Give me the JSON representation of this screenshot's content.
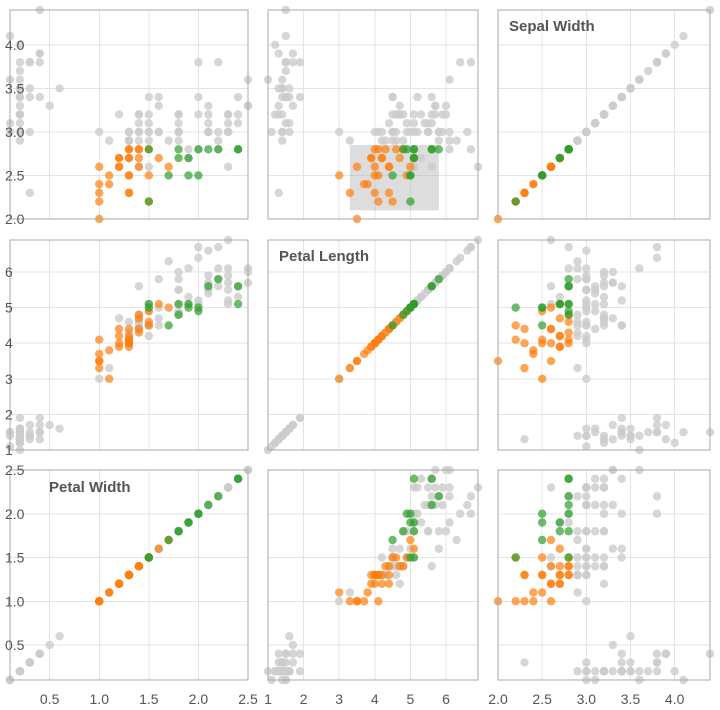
{
  "chart_data": {
    "type": "scatter",
    "subtype": "scatterplot-matrix",
    "dimensions": [
      {
        "name": "Sepal Width",
        "ylim": [
          2.0,
          4.4
        ],
        "yticks": [
          2.0,
          2.5,
          3.0,
          3.5,
          4.0
        ],
        "xlim": [
          2.0,
          4.4
        ],
        "xticks": [
          2.0,
          2.5,
          3.0,
          3.5,
          4.0
        ]
      },
      {
        "name": "Petal Length",
        "ylim": [
          1.0,
          6.9
        ],
        "yticks": [
          1,
          2,
          3,
          4,
          5,
          6
        ],
        "xlim": [
          1.0,
          6.9
        ],
        "xticks": [
          1,
          2,
          3,
          4,
          5,
          6
        ]
      },
      {
        "name": "Petal Width",
        "ylim": [
          0.1,
          2.5
        ],
        "yticks": [
          0.5,
          1.0,
          1.5,
          2.0,
          2.5
        ],
        "xlim": [
          0.1,
          2.5
        ],
        "xticks": [
          0.5,
          1.0,
          1.5,
          2.0,
          2.5
        ]
      }
    ],
    "column_order": [
      2,
      1,
      0
    ],
    "row_order": [
      0,
      1,
      2
    ],
    "grid": true,
    "colors": {
      "unselected": "#cccccc",
      "versicolor": "#ff7f0e",
      "virginica": "#2ca02c",
      "frame": "#a8a8a8",
      "brush": "#b4b4b4"
    },
    "brush": {
      "row": 0,
      "col": 1,
      "x_range": [
        3.3,
        5.8
      ],
      "y_range": [
        2.1,
        2.85
      ]
    },
    "selected_points": [
      {
        "group": "versicolor",
        "pw": 1.0,
        "pl": 3.5,
        "sw": 2.0
      },
      {
        "group": "versicolor",
        "pw": 1.0,
        "pl": 3.3,
        "sw": 2.3
      },
      {
        "group": "versicolor",
        "pw": 1.0,
        "pl": 3.5,
        "sw": 2.6
      },
      {
        "group": "versicolor",
        "pw": 1.0,
        "pl": 3.7,
        "sw": 2.4
      },
      {
        "group": "versicolor",
        "pw": 1.0,
        "pl": 4.1,
        "sw": 2.2
      },
      {
        "group": "versicolor",
        "pw": 1.1,
        "pl": 3.0,
        "sw": 2.5
      },
      {
        "group": "versicolor",
        "pw": 1.1,
        "pl": 3.8,
        "sw": 2.4
      },
      {
        "group": "versicolor",
        "pw": 1.2,
        "pl": 3.9,
        "sw": 2.7
      },
      {
        "group": "versicolor",
        "pw": 1.2,
        "pl": 4.0,
        "sw": 2.6
      },
      {
        "group": "versicolor",
        "pw": 1.2,
        "pl": 4.4,
        "sw": 2.6
      },
      {
        "group": "versicolor",
        "pw": 1.2,
        "pl": 4.2,
        "sw": 2.7
      },
      {
        "group": "versicolor",
        "pw": 1.3,
        "pl": 4.0,
        "sw": 2.3
      },
      {
        "group": "versicolor",
        "pw": 1.3,
        "pl": 4.4,
        "sw": 2.3
      },
      {
        "group": "versicolor",
        "pw": 1.3,
        "pl": 4.1,
        "sw": 2.5
      },
      {
        "group": "versicolor",
        "pw": 1.3,
        "pl": 4.0,
        "sw": 2.5
      },
      {
        "group": "versicolor",
        "pw": 1.3,
        "pl": 3.9,
        "sw": 2.7
      },
      {
        "group": "versicolor",
        "pw": 1.3,
        "pl": 4.2,
        "sw": 2.7
      },
      {
        "group": "versicolor",
        "pw": 1.3,
        "pl": 4.1,
        "sw": 2.8
      },
      {
        "group": "versicolor",
        "pw": 1.3,
        "pl": 4.0,
        "sw": 2.8
      },
      {
        "group": "versicolor",
        "pw": 1.4,
        "pl": 4.4,
        "sw": 2.6
      },
      {
        "group": "versicolor",
        "pw": 1.4,
        "pl": 4.7,
        "sw": 2.7
      },
      {
        "group": "versicolor",
        "pw": 1.4,
        "pl": 4.3,
        "sw": 2.8
      },
      {
        "group": "versicolor",
        "pw": 1.4,
        "pl": 4.8,
        "sw": 2.8
      },
      {
        "group": "versicolor",
        "pw": 1.5,
        "pl": 4.5,
        "sw": 2.2
      },
      {
        "group": "versicolor",
        "pw": 1.5,
        "pl": 4.9,
        "sw": 2.5
      },
      {
        "group": "versicolor",
        "pw": 1.5,
        "pl": 4.6,
        "sw": 2.8
      },
      {
        "group": "versicolor",
        "pw": 1.6,
        "pl": 5.1,
        "sw": 2.7
      },
      {
        "group": "versicolor",
        "pw": 1.7,
        "pl": 5.0,
        "sw": 2.6
      },
      {
        "group": "virginica",
        "pw": 1.5,
        "pl": 5.0,
        "sw": 2.2
      },
      {
        "group": "virginica",
        "pw": 1.5,
        "pl": 5.1,
        "sw": 2.8
      },
      {
        "group": "virginica",
        "pw": 1.7,
        "pl": 4.5,
        "sw": 2.5
      },
      {
        "group": "virginica",
        "pw": 1.8,
        "pl": 4.8,
        "sw": 2.8
      },
      {
        "group": "virginica",
        "pw": 1.8,
        "pl": 5.1,
        "sw": 2.7
      },
      {
        "group": "virginica",
        "pw": 1.9,
        "pl": 5.1,
        "sw": 2.7
      },
      {
        "group": "virginica",
        "pw": 1.9,
        "pl": 5.0,
        "sw": 2.5
      },
      {
        "group": "virginica",
        "pw": 2.0,
        "pl": 4.9,
        "sw": 2.8
      },
      {
        "group": "virginica",
        "pw": 2.0,
        "pl": 5.0,
        "sw": 2.5
      },
      {
        "group": "virginica",
        "pw": 2.1,
        "pl": 5.6,
        "sw": 2.8
      },
      {
        "group": "virginica",
        "pw": 2.2,
        "pl": 5.8,
        "sw": 2.8
      },
      {
        "group": "virginica",
        "pw": 2.4,
        "pl": 5.1,
        "sw": 2.8
      },
      {
        "group": "virginica",
        "pw": 2.4,
        "pl": 5.6,
        "sw": 2.8
      }
    ],
    "unselected_points": [
      {
        "pw": 0.1,
        "pl": 1.1,
        "sw": 3.0
      },
      {
        "pw": 0.1,
        "pl": 1.4,
        "sw": 3.6
      },
      {
        "pw": 0.1,
        "pl": 1.5,
        "sw": 4.1
      },
      {
        "pw": 0.1,
        "pl": 1.5,
        "sw": 3.1
      },
      {
        "pw": 0.2,
        "pl": 1.4,
        "sw": 3.5
      },
      {
        "pw": 0.2,
        "pl": 1.4,
        "sw": 3.0
      },
      {
        "pw": 0.2,
        "pl": 1.3,
        "sw": 3.2
      },
      {
        "pw": 0.2,
        "pl": 1.5,
        "sw": 3.4
      },
      {
        "pw": 0.2,
        "pl": 1.4,
        "sw": 2.9
      },
      {
        "pw": 0.2,
        "pl": 1.6,
        "sw": 3.4
      },
      {
        "pw": 0.2,
        "pl": 1.2,
        "sw": 4.0
      },
      {
        "pw": 0.2,
        "pl": 1.5,
        "sw": 3.7
      },
      {
        "pw": 0.2,
        "pl": 1.9,
        "sw": 3.4
      },
      {
        "pw": 0.2,
        "pl": 1.0,
        "sw": 3.6
      },
      {
        "pw": 0.2,
        "pl": 1.6,
        "sw": 3.0
      },
      {
        "pw": 0.2,
        "pl": 1.3,
        "sw": 3.3
      },
      {
        "pw": 0.2,
        "pl": 1.5,
        "sw": 3.8
      },
      {
        "pw": 0.2,
        "pl": 1.4,
        "sw": 3.2
      },
      {
        "pw": 0.2,
        "pl": 1.6,
        "sw": 3.1
      },
      {
        "pw": 0.2,
        "pl": 1.2,
        "sw": 3.2
      },
      {
        "pw": 0.2,
        "pl": 1.3,
        "sw": 3.5
      },
      {
        "pw": 0.3,
        "pl": 1.4,
        "sw": 3.4
      },
      {
        "pw": 0.3,
        "pl": 1.3,
        "sw": 2.3
      },
      {
        "pw": 0.3,
        "pl": 1.4,
        "sw": 3.5
      },
      {
        "pw": 0.3,
        "pl": 1.5,
        "sw": 3.8
      },
      {
        "pw": 0.3,
        "pl": 1.7,
        "sw": 3.8
      },
      {
        "pw": 0.3,
        "pl": 1.4,
        "sw": 3.0
      },
      {
        "pw": 0.4,
        "pl": 1.7,
        "sw": 3.9
      },
      {
        "pw": 0.4,
        "pl": 1.5,
        "sw": 4.4
      },
      {
        "pw": 0.4,
        "pl": 1.3,
        "sw": 3.9
      },
      {
        "pw": 0.4,
        "pl": 1.5,
        "sw": 3.4
      },
      {
        "pw": 0.4,
        "pl": 1.9,
        "sw": 3.8
      },
      {
        "pw": 0.5,
        "pl": 1.7,
        "sw": 3.3
      },
      {
        "pw": 0.6,
        "pl": 1.6,
        "sw": 3.5
      },
      {
        "pw": 1.3,
        "pl": 4.6,
        "sw": 2.9
      },
      {
        "pw": 1.3,
        "pl": 4.0,
        "sw": 3.0
      },
      {
        "pw": 1.4,
        "pl": 4.4,
        "sw": 3.1
      },
      {
        "pw": 1.4,
        "pl": 4.6,
        "sw": 3.0
      },
      {
        "pw": 1.4,
        "pl": 4.7,
        "sw": 3.2
      },
      {
        "pw": 1.5,
        "pl": 4.5,
        "sw": 3.2
      },
      {
        "pw": 1.5,
        "pl": 4.9,
        "sw": 3.1
      },
      {
        "pw": 1.5,
        "pl": 4.5,
        "sw": 3.0
      },
      {
        "pw": 1.5,
        "pl": 4.5,
        "sw": 3.4
      },
      {
        "pw": 1.6,
        "pl": 4.5,
        "sw": 3.4
      },
      {
        "pw": 1.6,
        "pl": 4.7,
        "sw": 3.3
      },
      {
        "pw": 1.3,
        "pl": 4.1,
        "sw": 3.0
      },
      {
        "pw": 1.2,
        "pl": 4.7,
        "sw": 3.2
      },
      {
        "pw": 1.4,
        "pl": 4.6,
        "sw": 3.2
      },
      {
        "pw": 1.3,
        "pl": 4.3,
        "sw": 2.9
      },
      {
        "pw": 1.4,
        "pl": 4.5,
        "sw": 3.0
      },
      {
        "pw": 1.5,
        "pl": 4.2,
        "sw": 3.0
      },
      {
        "pw": 1.3,
        "pl": 4.2,
        "sw": 2.9
      },
      {
        "pw": 1.0,
        "pl": 3.0,
        "sw": 3.0
      },
      {
        "pw": 1.1,
        "pl": 3.3,
        "sw": 2.9
      },
      {
        "pw": 1.6,
        "pl": 5.0,
        "sw": 3.0
      },
      {
        "pw": 1.4,
        "pl": 4.8,
        "sw": 2.9
      },
      {
        "pw": 1.8,
        "pl": 4.8,
        "sw": 3.2
      },
      {
        "pw": 1.5,
        "pl": 4.5,
        "sw": 2.9
      },
      {
        "pw": 2.5,
        "pl": 6.0,
        "sw": 3.3
      },
      {
        "pw": 2.1,
        "pl": 5.9,
        "sw": 3.0
      },
      {
        "pw": 2.2,
        "pl": 6.1,
        "sw": 2.9
      },
      {
        "pw": 1.8,
        "pl": 5.8,
        "sw": 2.9
      },
      {
        "pw": 2.1,
        "pl": 6.6,
        "sw": 3.0
      },
      {
        "pw": 1.7,
        "pl": 6.3,
        "sw": 2.9
      },
      {
        "pw": 2.5,
        "pl": 6.1,
        "sw": 3.6
      },
      {
        "pw": 2.0,
        "pl": 5.1,
        "sw": 3.2
      },
      {
        "pw": 1.9,
        "pl": 5.3,
        "sw": 2.7
      },
      {
        "pw": 2.1,
        "pl": 5.5,
        "sw": 3.0
      },
      {
        "pw": 2.4,
        "pl": 5.3,
        "sw": 3.2
      },
      {
        "pw": 2.3,
        "pl": 5.5,
        "sw": 3.0
      },
      {
        "pw": 2.2,
        "pl": 6.7,
        "sw": 3.8
      },
      {
        "pw": 2.3,
        "pl": 6.9,
        "sw": 2.6
      },
      {
        "pw": 2.3,
        "pl": 5.7,
        "sw": 3.2
      },
      {
        "pw": 2.0,
        "pl": 6.7,
        "sw": 2.8
      },
      {
        "pw": 2.1,
        "pl": 5.7,
        "sw": 3.3
      },
      {
        "pw": 1.8,
        "pl": 6.0,
        "sw": 3.2
      },
      {
        "pw": 1.8,
        "pl": 4.9,
        "sw": 3.0
      },
      {
        "pw": 2.1,
        "pl": 5.6,
        "sw": 3.2
      },
      {
        "pw": 1.6,
        "pl": 5.8,
        "sw": 3.0
      },
      {
        "pw": 1.9,
        "pl": 6.1,
        "sw": 2.8
      },
      {
        "pw": 2.0,
        "pl": 6.4,
        "sw": 3.8
      },
      {
        "pw": 2.2,
        "pl": 5.6,
        "sw": 2.8
      },
      {
        "pw": 1.5,
        "pl": 5.1,
        "sw": 2.6
      },
      {
        "pw": 1.4,
        "pl": 5.6,
        "sw": 2.6
      },
      {
        "pw": 2.3,
        "pl": 6.1,
        "sw": 3.0
      },
      {
        "pw": 2.4,
        "pl": 5.6,
        "sw": 3.4
      },
      {
        "pw": 1.8,
        "pl": 5.5,
        "sw": 3.1
      },
      {
        "pw": 2.1,
        "pl": 5.4,
        "sw": 3.1
      },
      {
        "pw": 2.3,
        "pl": 5.1,
        "sw": 3.1
      },
      {
        "pw": 1.9,
        "pl": 5.1,
        "sw": 2.7
      },
      {
        "pw": 2.3,
        "pl": 5.9,
        "sw": 3.2
      },
      {
        "pw": 2.5,
        "pl": 5.7,
        "sw": 3.3
      },
      {
        "pw": 2.3,
        "pl": 5.2,
        "sw": 3.0
      },
      {
        "pw": 2.0,
        "pl": 5.2,
        "sw": 3.4
      },
      {
        "pw": 1.8,
        "pl": 5.1,
        "sw": 3.0
      },
      {
        "pw": 1.8,
        "pl": 5.5,
        "sw": 3.0
      },
      {
        "pw": 2.4,
        "pl": 5.6,
        "sw": 3.1
      },
      {
        "pw": 2.2,
        "pl": 5.8,
        "sw": 3.0
      }
    ]
  },
  "labels": {
    "diag_sepal_width": "Sepal Width",
    "diag_petal_length": "Petal Length",
    "diag_petal_width": "Petal Width"
  }
}
